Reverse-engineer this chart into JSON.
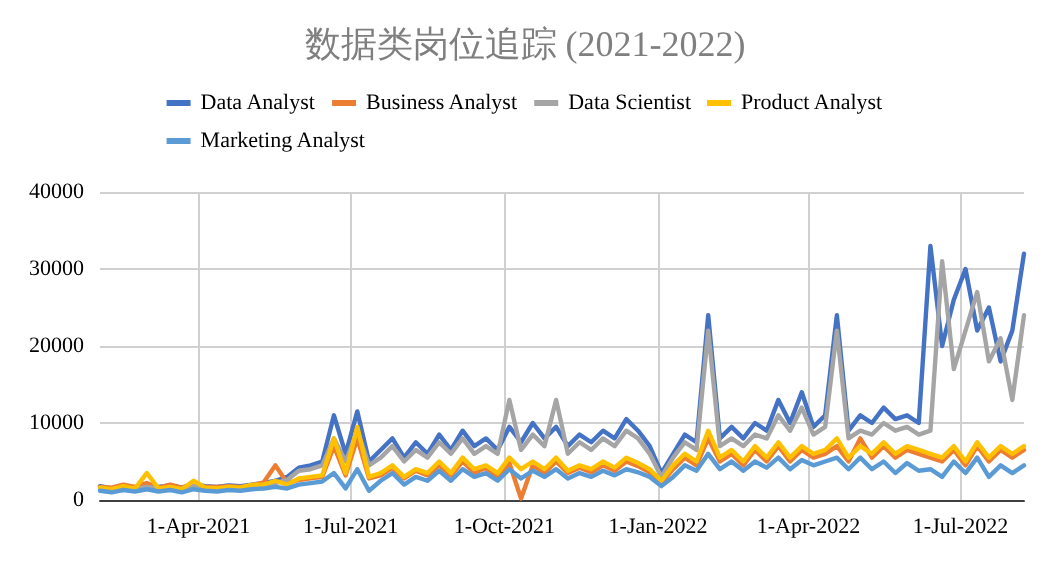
{
  "chart_data": {
    "type": "line",
    "title": "数据类岗位追踪 (2021-2022)",
    "x": [
      "2021-02-01",
      "2021-02-08",
      "2021-02-15",
      "2021-02-22",
      "2021-03-01",
      "2021-03-08",
      "2021-03-15",
      "2021-03-22",
      "2021-03-29",
      "2021-04-05",
      "2021-04-12",
      "2021-04-19",
      "2021-04-26",
      "2021-05-03",
      "2021-05-10",
      "2021-05-17",
      "2021-05-24",
      "2021-05-31",
      "2021-06-07",
      "2021-06-14",
      "2021-06-21",
      "2021-06-28",
      "2021-07-05",
      "2021-07-12",
      "2021-07-19",
      "2021-07-26",
      "2021-08-02",
      "2021-08-09",
      "2021-08-16",
      "2021-08-23",
      "2021-08-30",
      "2021-09-06",
      "2021-09-13",
      "2021-09-20",
      "2021-09-27",
      "2021-10-04",
      "2021-10-11",
      "2021-10-18",
      "2021-10-25",
      "2021-11-01",
      "2021-11-08",
      "2021-11-15",
      "2021-11-22",
      "2021-11-29",
      "2021-12-06",
      "2021-12-13",
      "2021-12-20",
      "2021-12-27",
      "2022-01-03",
      "2022-01-10",
      "2022-01-17",
      "2022-01-24",
      "2022-01-31",
      "2022-02-07",
      "2022-02-14",
      "2022-02-21",
      "2022-02-28",
      "2022-03-07",
      "2022-03-14",
      "2022-03-21",
      "2022-03-28",
      "2022-04-04",
      "2022-04-11",
      "2022-04-18",
      "2022-04-25",
      "2022-05-02",
      "2022-05-09",
      "2022-05-16",
      "2022-05-23",
      "2022-05-30",
      "2022-06-06",
      "2022-06-13",
      "2022-06-20",
      "2022-06-27",
      "2022-07-04",
      "2022-07-11",
      "2022-07-18",
      "2022-07-25",
      "2022-08-01",
      "2022-08-08"
    ],
    "series": [
      {
        "name": "Data Analyst",
        "color": "#4472c4",
        "values": [
          1800,
          1500,
          1900,
          1600,
          2000,
          1700,
          1900,
          1600,
          2100,
          1800,
          1700,
          1900,
          1800,
          2000,
          2200,
          2500,
          3000,
          4200,
          4500,
          5000,
          11000,
          6000,
          11500,
          5000,
          6500,
          8000,
          5500,
          7500,
          6000,
          8500,
          6500,
          9000,
          7000,
          8000,
          6500,
          9500,
          7500,
          10000,
          8000,
          9500,
          7000,
          8500,
          7500,
          9000,
          8000,
          10500,
          9000,
          7000,
          3500,
          6000,
          8500,
          7500,
          24000,
          8000,
          9500,
          8000,
          10000,
          9000,
          13000,
          10000,
          14000,
          9500,
          11000,
          24000,
          9000,
          11000,
          10000,
          12000,
          10500,
          11000,
          10000,
          33000,
          20000,
          26000,
          30000,
          22000,
          25000,
          18000,
          22000,
          32000
        ]
      },
      {
        "name": "Business Analyst",
        "color": "#ed7d31",
        "values": [
          1700,
          1600,
          2000,
          1700,
          2200,
          1600,
          2000,
          1600,
          2000,
          1700,
          1700,
          1800,
          1700,
          1900,
          2300,
          4500,
          2200,
          2600,
          2800,
          3000,
          7000,
          3200,
          8000,
          2800,
          3200,
          4200,
          2800,
          3800,
          3200,
          4500,
          3200,
          5000,
          3500,
          4200,
          3000,
          4800,
          200,
          4500,
          3500,
          5000,
          3500,
          4200,
          3600,
          4500,
          3800,
          5000,
          4400,
          3600,
          2200,
          4000,
          5500,
          4500,
          8000,
          5000,
          6000,
          4500,
          6500,
          5000,
          7000,
          5000,
          6500,
          5500,
          6000,
          7000,
          5000,
          8000,
          5500,
          7000,
          5500,
          6500,
          6000,
          5500,
          5000,
          6500,
          4500,
          7000,
          5000,
          6500,
          5500,
          6500
        ]
      },
      {
        "name": "Data Scientist",
        "color": "#a5a5a5",
        "values": [
          1500,
          1300,
          1600,
          1400,
          1700,
          1500,
          1600,
          1400,
          1800,
          1500,
          1500,
          1600,
          1500,
          1700,
          1900,
          2200,
          2600,
          3800,
          4000,
          4500,
          8000,
          5000,
          9000,
          4500,
          5500,
          7000,
          5000,
          6500,
          5500,
          7500,
          6000,
          8000,
          6000,
          7000,
          6000,
          13000,
          6500,
          8500,
          7000,
          13000,
          6000,
          7500,
          6500,
          8000,
          7000,
          9000,
          8000,
          6000,
          3000,
          5500,
          7500,
          6500,
          22000,
          7000,
          8000,
          7000,
          8500,
          8000,
          11000,
          9000,
          12000,
          8500,
          9500,
          22000,
          8000,
          9000,
          8500,
          10000,
          9000,
          9500,
          8500,
          9000,
          31000,
          17000,
          22000,
          27000,
          18000,
          21000,
          13000,
          24000
        ]
      },
      {
        "name": "Product Analyst",
        "color": "#ffc000",
        "values": [
          1600,
          1400,
          1800,
          1500,
          3500,
          1500,
          1700,
          1400,
          2500,
          1600,
          1500,
          1700,
          1600,
          2000,
          2000,
          2500,
          2000,
          2800,
          3000,
          3200,
          8000,
          3500,
          9500,
          3000,
          3500,
          4500,
          3000,
          4000,
          3500,
          5000,
          3500,
          5500,
          4000,
          4500,
          3500,
          5500,
          4000,
          5000,
          4000,
          5500,
          3800,
          4500,
          4000,
          5000,
          4200,
          5500,
          4800,
          4000,
          2500,
          4500,
          6000,
          5000,
          9000,
          5500,
          6500,
          5000,
          7000,
          5500,
          7500,
          5500,
          7000,
          6000,
          6500,
          8000,
          5500,
          7000,
          6000,
          7500,
          6000,
          7000,
          6500,
          6000,
          5500,
          7000,
          5000,
          7500,
          5500,
          7000,
          6000,
          7000
        ]
      },
      {
        "name": "Marketing Analyst",
        "color": "#5b9bd5",
        "values": [
          1200,
          1000,
          1300,
          1100,
          1400,
          1100,
          1300,
          1000,
          1400,
          1200,
          1100,
          1300,
          1200,
          1400,
          1500,
          1700,
          1500,
          2000,
          2200,
          2400,
          3500,
          1500,
          4000,
          1200,
          2500,
          3500,
          2000,
          3000,
          2500,
          3800,
          2500,
          4000,
          3000,
          3500,
          2500,
          4000,
          2800,
          3800,
          3000,
          4000,
          2800,
          3500,
          3000,
          3800,
          3200,
          4000,
          3600,
          3000,
          1800,
          3000,
          4500,
          3800,
          6000,
          4000,
          5000,
          3800,
          5000,
          4200,
          5500,
          4000,
          5200,
          4500,
          5000,
          5500,
          4000,
          5500,
          4000,
          5000,
          3500,
          4800,
          3800,
          4000,
          3000,
          5000,
          3500,
          5500,
          3000,
          4500,
          3500,
          4500
        ]
      }
    ],
    "xlim": [
      "2021-02-01",
      "2022-08-08"
    ],
    "xticks": [
      {
        "value": "2021-04-01",
        "label": "1-Apr-2021"
      },
      {
        "value": "2021-07-01",
        "label": "1-Jul-2021"
      },
      {
        "value": "2021-10-01",
        "label": "1-Oct-2021"
      },
      {
        "value": "2022-01-01",
        "label": "1-Jan-2022"
      },
      {
        "value": "2022-04-01",
        "label": "1-Apr-2022"
      },
      {
        "value": "2022-07-01",
        "label": "1-Jul-2022"
      }
    ],
    "ylim": [
      0,
      40000
    ],
    "yticks": [
      0,
      10000,
      20000,
      30000,
      40000
    ],
    "grid": true,
    "legend": "top",
    "marker": "none",
    "line_style": "solid"
  }
}
